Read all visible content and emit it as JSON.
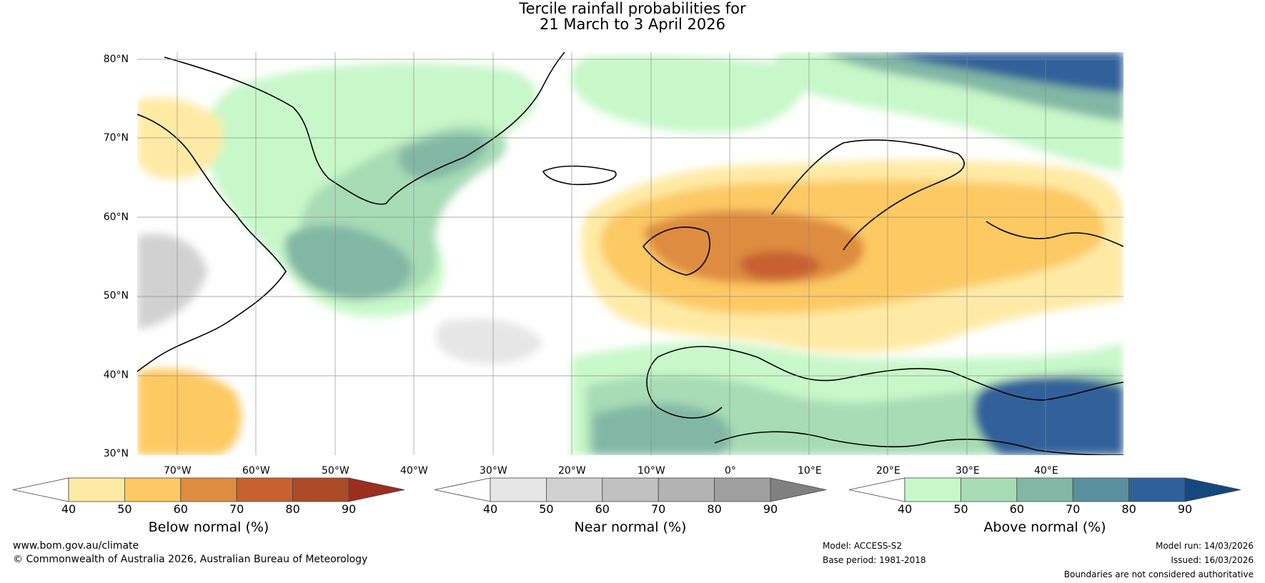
{
  "title_line1": "Tercile rainfall probabilities for",
  "title_line2": "21 March to 3 April 2026",
  "map": {
    "lat_labels": [
      "80°N",
      "70°N",
      "60°N",
      "50°N",
      "40°N",
      "30°N"
    ],
    "lon_labels": [
      "70°W",
      "60°W",
      "50°W",
      "40°W",
      "30°W",
      "20°W",
      "10°W",
      "0°",
      "10°E",
      "20°E",
      "30°E",
      "40°E"
    ],
    "lat_range": [
      30,
      80
    ],
    "lon_range": [
      -77,
      50
    ]
  },
  "legends": [
    {
      "title": "Below normal (%)",
      "ticks": [
        "40",
        "50",
        "60",
        "70",
        "80",
        "90"
      ],
      "colors": [
        "#ffeaa5",
        "#fdc964",
        "#de8c3f",
        "#c86030",
        "#ad4a28"
      ],
      "low_color": "#ffffff",
      "high_color": "#9b2e1e"
    },
    {
      "title": "Near normal (%)",
      "ticks": [
        "40",
        "50",
        "60",
        "70",
        "80",
        "90"
      ],
      "colors": [
        "#e6e6e6",
        "#d1d1d1",
        "#c1c1c1",
        "#b3b3b3",
        "#9f9f9f"
      ],
      "low_color": "#ffffff",
      "high_color": "#808080"
    },
    {
      "title": "Above normal (%)",
      "ticks": [
        "40",
        "50",
        "60",
        "70",
        "80",
        "90"
      ],
      "colors": [
        "#c8f8c9",
        "#a7dcb5",
        "#82b7a6",
        "#5a8fa0",
        "#30609a"
      ],
      "low_color": "#ffffff",
      "high_color": "#15487f"
    }
  ],
  "footer": {
    "website": "www.bom.gov.au/climate",
    "copyright": "© Commonwealth of Australia 2026, Australian Bureau of Meteorology",
    "model": "Model: ACCESS-S2",
    "base_period": "Base period: 1981-2018",
    "model_run": "Model run: 14/03/2026",
    "issued": "Issued: 16/03/2026",
    "disclaimer": "Boundaries are not considered authoritative"
  }
}
